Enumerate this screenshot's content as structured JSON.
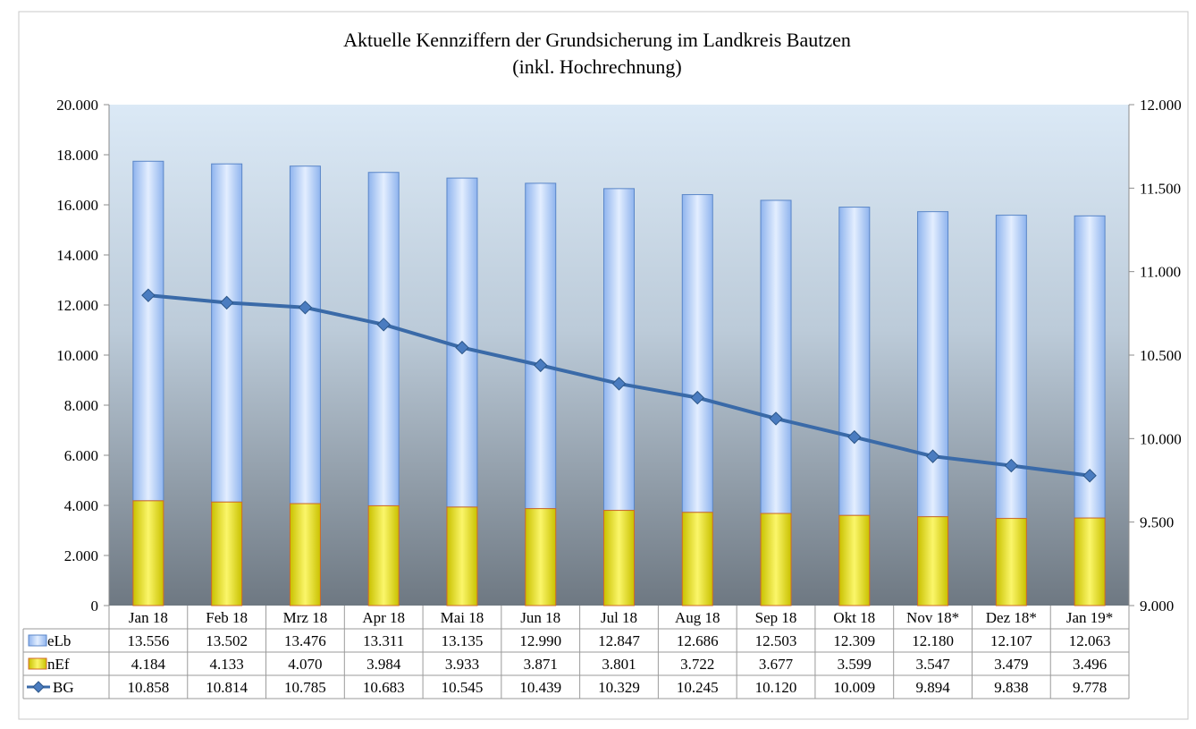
{
  "chart_data": {
    "type": "bar",
    "title": "Aktuelle Kennziffern der Grundsicherung im Landkreis Bautzen",
    "subtitle": "(inkl. Hochrechnung)",
    "categories": [
      "Jan 18",
      "Feb 18",
      "Mrz 18",
      "Apr 18",
      "Mai 18",
      "Jun 18",
      "Jul 18",
      "Aug 18",
      "Sep 18",
      "Okt 18",
      "Nov 18*",
      "Dez 18*",
      "Jan 19*"
    ],
    "stacked": true,
    "series": [
      {
        "name": "nEf",
        "type": "bar",
        "axis": "left",
        "color": "#e8e000",
        "values": [
          4184,
          4133,
          4070,
          3984,
          3933,
          3871,
          3801,
          3722,
          3677,
          3599,
          3547,
          3479,
          3496
        ],
        "labels": [
          "4.184",
          "4.133",
          "4.070",
          "3.984",
          "3.933",
          "3.871",
          "3.801",
          "3.722",
          "3.677",
          "3.599",
          "3.547",
          "3.479",
          "3.496"
        ]
      },
      {
        "name": "eLb",
        "type": "bar",
        "axis": "left",
        "color": "#a9c8f5",
        "values": [
          13556,
          13502,
          13476,
          13311,
          13135,
          12990,
          12847,
          12686,
          12503,
          12309,
          12180,
          12107,
          12063
        ],
        "labels": [
          "13.556",
          "13.502",
          "13.476",
          "13.311",
          "13.135",
          "12.990",
          "12.847",
          "12.686",
          "12.503",
          "12.309",
          "12.180",
          "12.107",
          "12.063"
        ]
      },
      {
        "name": "BG",
        "type": "line",
        "axis": "right",
        "color": "#3a6aa8",
        "values": [
          10858,
          10814,
          10785,
          10683,
          10545,
          10439,
          10329,
          10245,
          10120,
          10009,
          9894,
          9838,
          9778
        ],
        "labels": [
          "10.858",
          "10.814",
          "10.785",
          "10.683",
          "10.545",
          "10.439",
          "10.329",
          "10.245",
          "10.120",
          "10.009",
          "9.894",
          "9.838",
          "9.778"
        ]
      }
    ],
    "table_order": [
      "eLb",
      "nEf",
      "BG"
    ],
    "y_left": {
      "min": 0,
      "max": 20000,
      "ticks": [
        0,
        2000,
        4000,
        6000,
        8000,
        10000,
        12000,
        14000,
        16000,
        18000,
        20000
      ],
      "tick_labels": [
        "0",
        "2.000",
        "4.000",
        "6.000",
        "8.000",
        "10.000",
        "12.000",
        "14.000",
        "16.000",
        "18.000",
        "20.000"
      ]
    },
    "y_right": {
      "min": 9000,
      "max": 12000,
      "ticks": [
        9000,
        9500,
        10000,
        10500,
        11000,
        11500,
        12000
      ],
      "tick_labels": [
        "9.000",
        "9.500",
        "10.000",
        "10.500",
        "11.000",
        "11.500",
        "12.000"
      ]
    },
    "legend": "data-table",
    "grid": false
  }
}
